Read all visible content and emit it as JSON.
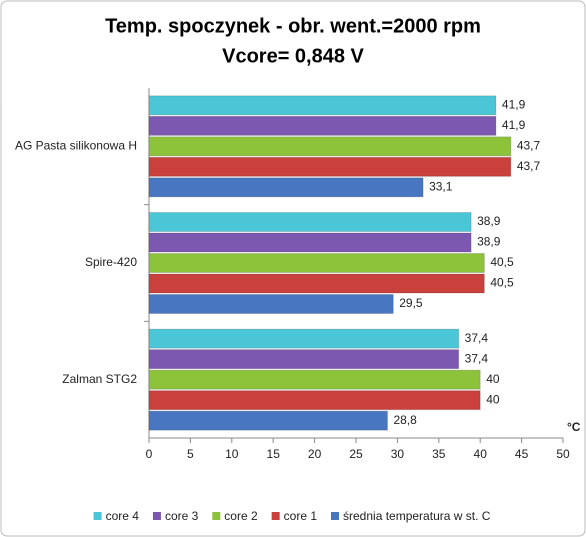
{
  "chart_data": {
    "type": "hbar",
    "title": "Temp. spoczynek - obr. went.=2000 rpm",
    "subtitle": "Vcore= 0,848 V",
    "x_axis_label": "°C",
    "categories": [
      "AG Pasta silikonowa H",
      "Spire-420",
      "Zalman STG2"
    ],
    "series": [
      {
        "name": "core 4",
        "color": "#4bc6d6",
        "values": [
          41.9,
          38.9,
          37.4
        ],
        "value_labels": [
          "41,9",
          "38,9",
          "37,4"
        ]
      },
      {
        "name": "core 3",
        "color": "#7c58b0",
        "values": [
          41.9,
          38.9,
          37.4
        ],
        "value_labels": [
          "41,9",
          "38,9",
          "37,4"
        ]
      },
      {
        "name": "core 2",
        "color": "#8cc33a",
        "values": [
          43.7,
          40.5,
          40
        ],
        "value_labels": [
          "43,7",
          "40,5",
          "40"
        ]
      },
      {
        "name": "core 1",
        "color": "#c9403d",
        "values": [
          43.7,
          40.5,
          40
        ],
        "value_labels": [
          "43,7",
          "40,5",
          "40"
        ]
      },
      {
        "name": "średnia temperatura  w st. C",
        "color": "#4876c0",
        "values": [
          33.1,
          29.5,
          28.8
        ],
        "value_labels": [
          "33,1",
          "29,5",
          "28,8"
        ]
      }
    ],
    "xlim": [
      0,
      50
    ],
    "xticks": [
      0,
      5,
      10,
      15,
      20,
      25,
      30,
      35,
      40,
      45,
      50
    ],
    "grid": false,
    "legend": "bottom"
  }
}
